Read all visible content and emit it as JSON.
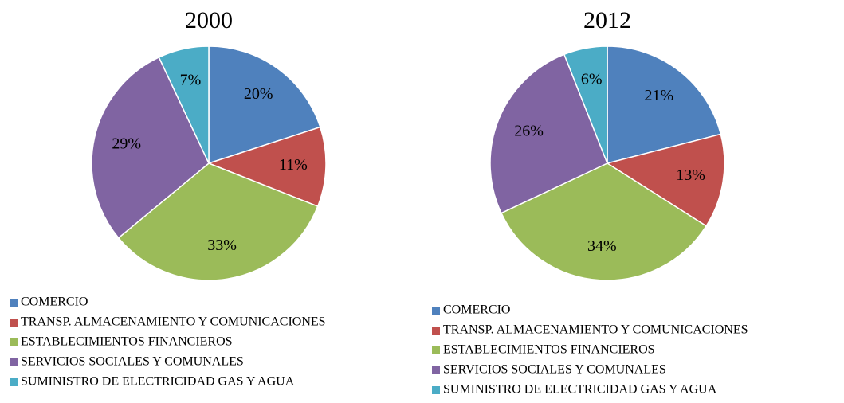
{
  "chart_data": [
    {
      "type": "pie",
      "title": "2000",
      "categories": [
        "COMERCIO",
        "TRANSP. ALMACENAMIENTO Y COMUNICACIONES",
        "ESTABLECIMIENTOS FINANCIEROS",
        "SERVICIOS SOCIALES Y COMUNALES",
        "SUMINISTRO DE ELECTRICIDAD GAS Y AGUA"
      ],
      "values": [
        20,
        11,
        33,
        29,
        7
      ],
      "value_labels": [
        "20%",
        "11%",
        "33%",
        "29%",
        "7%"
      ],
      "colors": [
        "#4f81bd",
        "#c0504d",
        "#9bbb59",
        "#8064a2",
        "#4bacc6"
      ]
    },
    {
      "type": "pie",
      "title": "2012",
      "categories": [
        "COMERCIO",
        "TRANSP. ALMACENAMIENTO Y COMUNICACIONES",
        "ESTABLECIMIENTOS FINANCIEROS",
        "SERVICIOS SOCIALES Y COMUNALES",
        "SUMINISTRO DE ELECTRICIDAD GAS Y AGUA"
      ],
      "values": [
        21,
        13,
        34,
        26,
        6
      ],
      "value_labels": [
        "21%",
        "13%",
        "34%",
        "26%",
        "6%"
      ],
      "colors": [
        "#4f81bd",
        "#c0504d",
        "#9bbb59",
        "#8064a2",
        "#4bacc6"
      ]
    }
  ]
}
